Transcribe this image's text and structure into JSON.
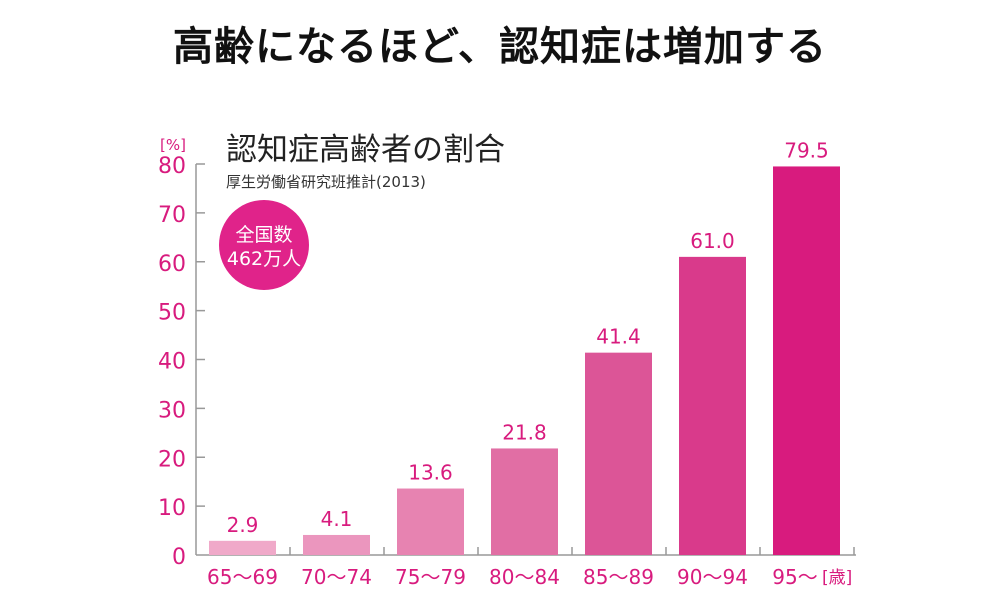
{
  "headline": "高齢になるほど、認知症は増加する",
  "chart_data": {
    "type": "bar",
    "title": "認知症高齢者の割合",
    "subtitle": "厚生労働省研究班推計(2013)",
    "ylabel": "[%]",
    "xlabel": "[歳]",
    "ylim": [
      0,
      80
    ],
    "yticks": [
      0,
      10,
      20,
      30,
      40,
      50,
      60,
      70,
      80
    ],
    "categories": [
      "65〜69",
      "70〜74",
      "75〜79",
      "80〜84",
      "85〜89",
      "90〜94",
      "95〜"
    ],
    "values": [
      2.9,
      4.1,
      13.6,
      21.8,
      41.4,
      61.0,
      79.5
    ],
    "data_labels": [
      "2.9",
      "4.1",
      "13.6",
      "21.8",
      "41.4",
      "61.0",
      "79.5"
    ],
    "bar_colors": [
      "#f0a9c9",
      "#eb96be",
      "#e783b1",
      "#e16ea4",
      "#dc5597",
      "#d93a8b",
      "#d81b7e"
    ],
    "badge": {
      "line1": "全国数",
      "line2": "462万人",
      "color": "#e0238a"
    },
    "accent": "#d81b7e",
    "grid": false
  }
}
